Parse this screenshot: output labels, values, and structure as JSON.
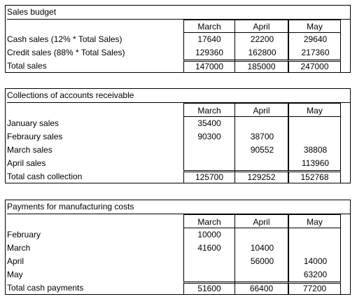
{
  "sections": [
    {
      "title": "Sales budget",
      "columns": [
        "March",
        "April",
        "May"
      ],
      "rows": [
        {
          "label": "Cash sales (12% * Total Sales)",
          "values": [
            17640,
            22200,
            29640
          ]
        },
        {
          "label": "Credit sales (88% * Total Sales)",
          "values": [
            129360,
            162800,
            217360
          ]
        }
      ],
      "total": {
        "label": "Total sales",
        "values": [
          147000,
          185000,
          247000
        ]
      }
    },
    {
      "title": "Collections of accounts receivable",
      "columns": [
        "March",
        "April",
        "May"
      ],
      "rows": [
        {
          "label": "January sales",
          "values": [
            35400,
            null,
            null
          ]
        },
        {
          "label": "Febraury sales",
          "values": [
            90300,
            38700,
            null
          ]
        },
        {
          "label": "March sales",
          "values": [
            null,
            90552,
            38808
          ]
        },
        {
          "label": "April sales",
          "values": [
            null,
            null,
            113960
          ]
        }
      ],
      "total": {
        "label": "Total cash collection",
        "values": [
          125700,
          129252,
          152768
        ]
      }
    },
    {
      "title": "Payments for manufacturing costs",
      "columns": [
        "March",
        "April",
        "May"
      ],
      "rows": [
        {
          "label": "February",
          "values": [
            10000,
            null,
            null
          ]
        },
        {
          "label": "March",
          "values": [
            41600,
            10400,
            null
          ]
        },
        {
          "label": "April",
          "values": [
            null,
            56000,
            14000
          ]
        },
        {
          "label": "May",
          "values": [
            null,
            null,
            63200
          ]
        }
      ],
      "total": {
        "label": "Total cash payments",
        "values": [
          51600,
          66400,
          77200
        ]
      }
    }
  ]
}
